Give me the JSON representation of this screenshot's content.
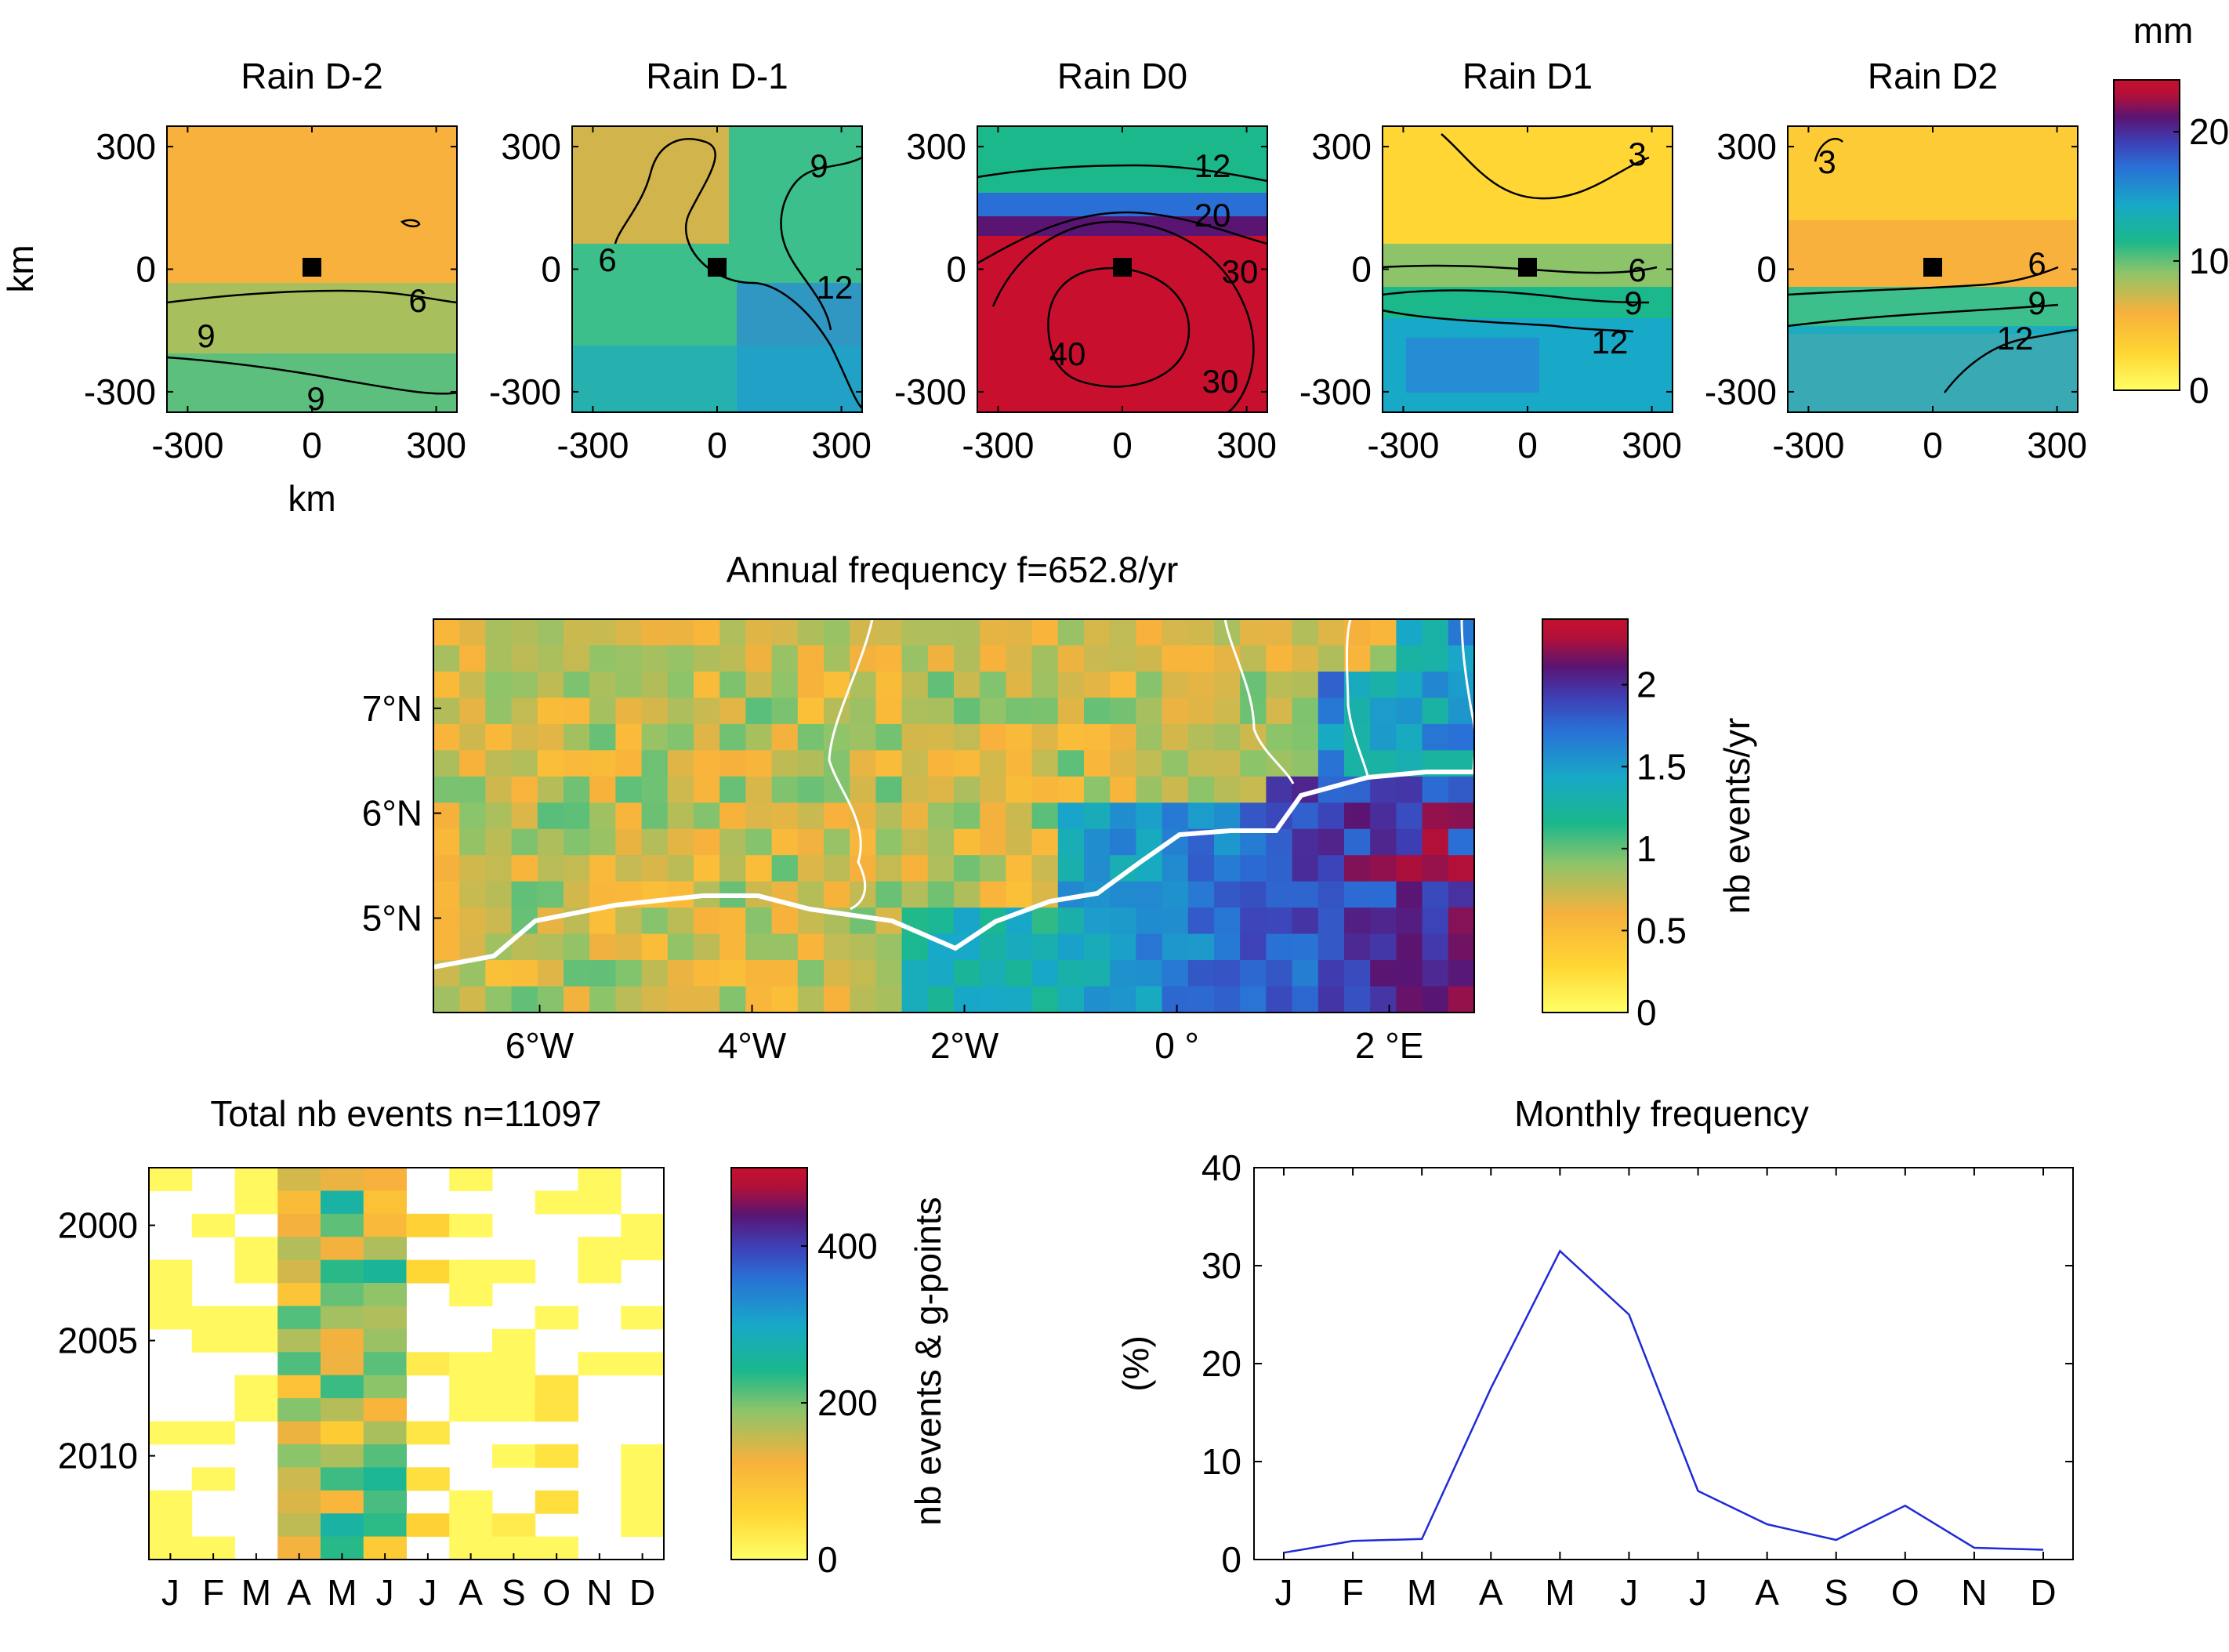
{
  "chart_data": [
    {
      "type": "heatmap",
      "id": "rain-composites",
      "titles": [
        "Rain D-2",
        "Rain D-1",
        "Rain D0",
        "Rain D1",
        "Rain D2"
      ],
      "xlabel": "km",
      "ylabel": "km",
      "xticks": [
        "-300",
        "0",
        "300"
      ],
      "yticks": [
        "300",
        "0",
        "-300"
      ],
      "xlim": [
        -350,
        350
      ],
      "ylim": [
        -350,
        350
      ],
      "contour_labels": [
        [
          "6",
          "9",
          "9"
        ],
        [
          "9",
          "6",
          "12"
        ],
        [
          "12",
          "20",
          "30",
          "40",
          "30"
        ],
        [
          "3",
          "6",
          "9",
          "12"
        ],
        [
          "3",
          "6",
          "9",
          "12"
        ]
      ],
      "marker": "storm center at (0, 0)",
      "colorbar": {
        "unit": "mm",
        "ticks": [
          "0",
          "10",
          "20"
        ],
        "range": [
          0,
          24
        ]
      }
    },
    {
      "type": "heatmap",
      "id": "annual-frequency-map",
      "title": "Annual frequency f=652.8/yr",
      "xticks": [
        "6°W",
        "4°W",
        "2°W",
        "0 °",
        "2 °E"
      ],
      "yticks": [
        "7°N",
        "6°N",
        "5°N"
      ],
      "xlim": [
        -7,
        2.8
      ],
      "ylim": [
        4.1,
        7.85
      ],
      "colorbar": {
        "label": "nb events/yr",
        "ticks": [
          "0",
          "0.5",
          "1",
          "1.5",
          "2"
        ],
        "range": [
          0,
          2.4
        ]
      },
      "overlay": "coastline (thick white) and country borders (thin white)"
    },
    {
      "type": "heatmap",
      "id": "monthly-yearly-events",
      "title": "Total nb events n=11097",
      "xticks": [
        "J",
        "F",
        "M",
        "A",
        "M",
        "J",
        "J",
        "A",
        "S",
        "O",
        "N",
        "D"
      ],
      "yticks": [
        "2000",
        "2005",
        "2010"
      ],
      "years": [
        1998,
        2014
      ],
      "colorbar": {
        "label": "nb events & g-points",
        "ticks": [
          "0",
          "200",
          "400"
        ],
        "range": [
          0,
          500
        ]
      }
    },
    {
      "type": "line",
      "id": "monthly-frequency",
      "title": "Monthly frequency",
      "categories": [
        "J",
        "F",
        "M",
        "A",
        "M",
        "J",
        "J",
        "A",
        "S",
        "O",
        "N",
        "D"
      ],
      "values": [
        0.7,
        1.9,
        2.1,
        17.5,
        31.5,
        25.0,
        7.0,
        3.6,
        2.0,
        5.5,
        1.2,
        1.0
      ],
      "ylabel": "(%)",
      "ylim": [
        0,
        40
      ],
      "yticks": [
        "0",
        "10",
        "20",
        "30",
        "40"
      ],
      "color": "#1f2bd6"
    }
  ]
}
